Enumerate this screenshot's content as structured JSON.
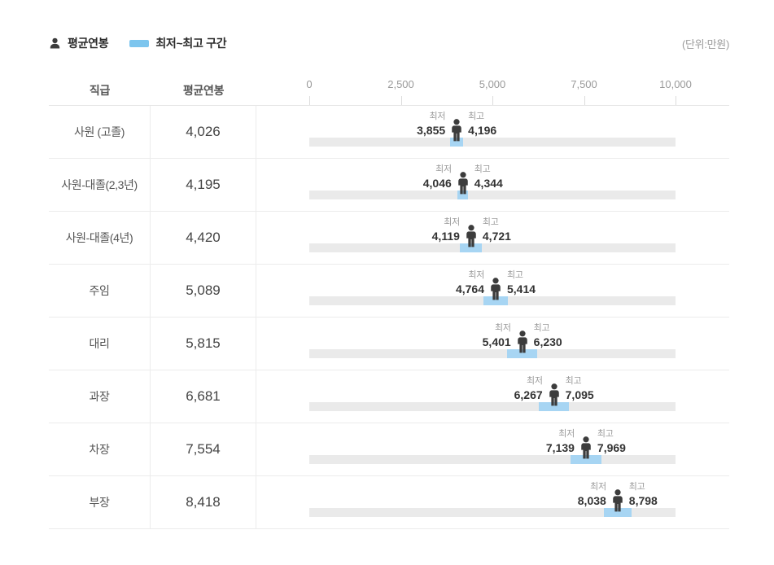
{
  "page": {
    "unit_note": "(단위:만원)"
  },
  "legend": {
    "avg_label": "평균연봉",
    "range_label": "최저~최고 구간"
  },
  "table_headers": {
    "position": "직급",
    "avg": "평균연봉"
  },
  "axis": {
    "min": 0,
    "max": 10000,
    "ticks": [
      "0",
      "2,500",
      "5,000",
      "7,500",
      "10,000"
    ]
  },
  "marker_labels": {
    "min": "최저",
    "max": "최고"
  },
  "colors": {
    "range_fill": "#a7d5f3",
    "legend_swatch": "#7cc5ee",
    "track": "#eaeaea",
    "icon": "#3c3c3c"
  },
  "rows": [
    {
      "position": "사원 (고졸)",
      "avg": 4026,
      "avg_text": "4,026",
      "min": 3855,
      "min_text": "3,855",
      "max": 4196,
      "max_text": "4,196"
    },
    {
      "position": "사원-대졸(2,3년)",
      "avg": 4195,
      "avg_text": "4,195",
      "min": 4046,
      "min_text": "4,046",
      "max": 4344,
      "max_text": "4,344"
    },
    {
      "position": "사원-대졸(4년)",
      "avg": 4420,
      "avg_text": "4,420",
      "min": 4119,
      "min_text": "4,119",
      "max": 4721,
      "max_text": "4,721"
    },
    {
      "position": "주임",
      "avg": 5089,
      "avg_text": "5,089",
      "min": 4764,
      "min_text": "4,764",
      "max": 5414,
      "max_text": "5,414"
    },
    {
      "position": "대리",
      "avg": 5815,
      "avg_text": "5,815",
      "min": 5401,
      "min_text": "5,401",
      "max": 6230,
      "max_text": "6,230"
    },
    {
      "position": "과장",
      "avg": 6681,
      "avg_text": "6,681",
      "min": 6267,
      "min_text": "6,267",
      "max": 7095,
      "max_text": "7,095"
    },
    {
      "position": "차장",
      "avg": 7554,
      "avg_text": "7,554",
      "min": 7139,
      "min_text": "7,139",
      "max": 7969,
      "max_text": "7,969"
    },
    {
      "position": "부장",
      "avg": 8418,
      "avg_text": "8,418",
      "min": 8038,
      "min_text": "8,038",
      "max": 8798,
      "max_text": "8,798"
    }
  ],
  "chart_data": {
    "type": "bar",
    "variant": "horizontal-range-with-average-marker",
    "title": "",
    "unit": "만원",
    "categories": [
      "사원 (고졸)",
      "사원-대졸(2,3년)",
      "사원-대졸(4년)",
      "주임",
      "대리",
      "과장",
      "차장",
      "부장"
    ],
    "series": [
      {
        "name": "최저",
        "values": [
          3855,
          4046,
          4119,
          4764,
          5401,
          6267,
          7139,
          8038
        ]
      },
      {
        "name": "평균연봉",
        "values": [
          4026,
          4195,
          4420,
          5089,
          5815,
          6681,
          7554,
          8418
        ]
      },
      {
        "name": "최고",
        "values": [
          4196,
          4344,
          4721,
          5414,
          6230,
          7095,
          7969,
          8798
        ]
      }
    ],
    "xlim": [
      0,
      10000
    ],
    "x_ticks": [
      0,
      2500,
      5000,
      7500,
      10000
    ],
    "grid": false,
    "legend_position": "top-left",
    "orientation": "horizontal"
  }
}
